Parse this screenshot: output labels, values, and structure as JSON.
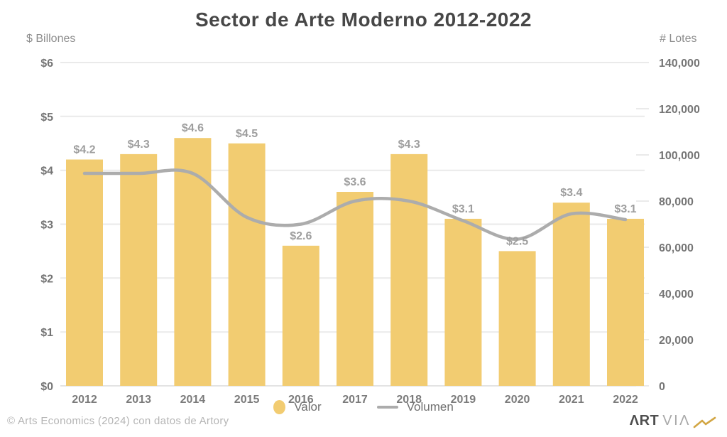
{
  "title": "Sector de Arte Moderno 2012-2022",
  "footer": {
    "copyright": "©  Arts Economics (2024) con datos de Artory",
    "logo_art": "ΛRT",
    "logo_via": "VIΛ"
  },
  "colors": {
    "bar": "#F2CC71",
    "line": "#ACACAC",
    "grid": "#EAEAEA",
    "axis_line": "#E3E3E3",
    "title_text": "#474747",
    "tick_text": "#757575",
    "bar_label_text": "#9E9E9E",
    "year_text": "#7B7B7B",
    "axis_header_text": "#8D8D8D",
    "legend_text": "#6F6F6F",
    "footer_text": "#B5B5B5",
    "logo_art": "#4F4F4F",
    "logo_via": "#A8A8A8",
    "logo_mark": "#D2A644"
  },
  "chart_data": {
    "type": "bar",
    "title": "Sector de Arte Moderno 2012-2022",
    "categories": [
      "2012",
      "2013",
      "2014",
      "2015",
      "2016",
      "2017",
      "2018",
      "2019",
      "2020",
      "2021",
      "2022"
    ],
    "series": [
      {
        "name": "Valor",
        "type": "bar",
        "axis": "left",
        "unit": "$ Billones",
        "values": [
          4.2,
          4.3,
          4.6,
          4.5,
          2.6,
          3.6,
          4.3,
          3.1,
          2.5,
          3.4,
          3.1
        ],
        "labels": [
          "$4.2",
          "$4.3",
          "$4.6",
          "$4.5",
          "$2.6",
          "$3.6",
          "$4.3",
          "$3.1",
          "$2.5",
          "$3.4",
          "$3.1"
        ],
        "color": "#F2CC71"
      },
      {
        "name": "Volumen",
        "type": "line",
        "axis": "right",
        "unit": "# Lotes",
        "values": [
          92000,
          92000,
          92000,
          73000,
          70000,
          80000,
          80000,
          71500,
          63500,
          74500,
          72000
        ],
        "color": "#ACACAC"
      }
    ],
    "left_axis": {
      "title": "$ Billones",
      "range": [
        0,
        6
      ],
      "ticks": [
        "$0",
        "$1",
        "$2",
        "$3",
        "$4",
        "$5",
        "$6"
      ]
    },
    "right_axis": {
      "title": "# Lotes",
      "range": [
        0,
        140000
      ],
      "ticks": [
        "0",
        "20,000",
        "40,000",
        "60,000",
        "80,000",
        "100,000",
        "120,000",
        "140,000"
      ]
    },
    "grid": true,
    "legend_position": "bottom"
  }
}
